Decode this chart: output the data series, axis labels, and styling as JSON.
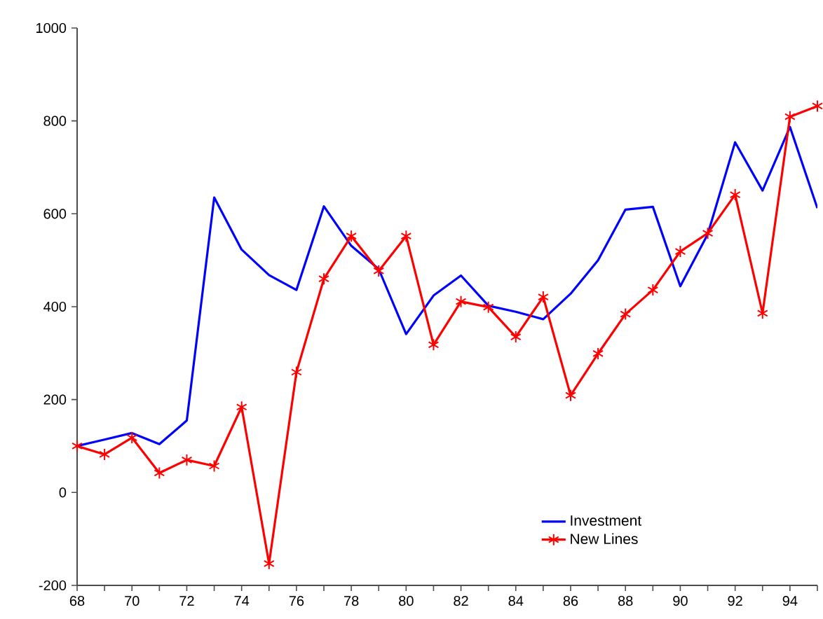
{
  "chart_data": {
    "type": "line",
    "x": [
      68,
      69,
      70,
      71,
      72,
      73,
      74,
      75,
      76,
      77,
      78,
      79,
      80,
      81,
      82,
      83,
      84,
      85,
      86,
      87,
      88,
      89,
      90,
      91,
      92,
      93,
      94,
      95
    ],
    "series": [
      {
        "name": "Investment",
        "color": "#0000ff",
        "marker": "none",
        "values": [
          100,
          114,
          128,
          104,
          155,
          635,
          523,
          468,
          436,
          616,
          531,
          481,
          341,
          424,
          467,
          402,
          389,
          373,
          428,
          500,
          609,
          615,
          444,
          556,
          754,
          650,
          787,
          612
        ]
      },
      {
        "name": "New Lines",
        "color": "#ff0000",
        "marker": "cross",
        "values": [
          100,
          82,
          118,
          42,
          70,
          57,
          184,
          -153,
          259,
          460,
          552,
          477,
          552,
          318,
          411,
          399,
          335,
          421,
          209,
          299,
          384,
          436,
          519,
          558,
          641,
          386,
          809,
          832
        ]
      }
    ],
    "xlim": [
      68,
      95
    ],
    "ylim": [
      -200,
      1000
    ],
    "xticks": [
      68,
      {
        "value": 69,
        "label": null
      },
      70,
      {
        "value": 71,
        "label": null
      },
      72,
      {
        "value": 73,
        "label": null
      },
      74,
      {
        "value": 75,
        "label": null
      },
      76,
      {
        "value": 77,
        "label": null
      },
      78,
      {
        "value": 79,
        "label": null
      },
      80,
      {
        "value": 81,
        "label": null
      },
      82,
      {
        "value": 83,
        "label": null
      },
      84,
      {
        "value": 85,
        "label": null
      },
      86,
      {
        "value": 87,
        "label": null
      },
      88,
      {
        "value": 89,
        "label": null
      },
      90,
      {
        "value": 91,
        "label": null
      },
      92,
      {
        "value": 93,
        "label": null
      },
      94,
      {
        "value": 95,
        "label": null
      }
    ],
    "yticks": [
      -200,
      0,
      200,
      400,
      600,
      800,
      1000
    ],
    "grid": false,
    "legend": "bottom right",
    "line_style": "solid"
  }
}
